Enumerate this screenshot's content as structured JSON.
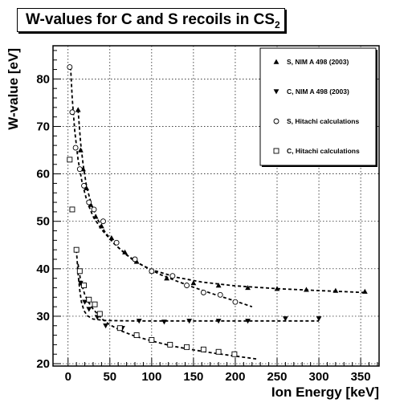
{
  "title": {
    "main": "W-values for C and S recoils in CS",
    "sub": "2"
  },
  "chart_data": {
    "type": "scatter",
    "xlabel": "Ion Energy [keV]",
    "ylabel": "W-value [eV]",
    "xlim": [
      -18,
      372
    ],
    "ylim": [
      19.5,
      87
    ],
    "xticks": [
      0,
      50,
      100,
      150,
      200,
      250,
      300,
      350
    ],
    "yticks": [
      20,
      30,
      40,
      50,
      60,
      70,
      80
    ],
    "grid": true,
    "legend_position": "top-right",
    "series": [
      {
        "name": "S, NIM A 498 (2003)",
        "marker": "triangle-up",
        "points": [
          [
            12,
            73.5
          ],
          [
            15,
            65
          ],
          [
            18,
            61
          ],
          [
            22,
            57
          ],
          [
            27,
            53.5
          ],
          [
            33,
            51
          ],
          [
            40,
            49
          ],
          [
            52,
            46.5
          ],
          [
            68,
            43.5
          ],
          [
            82,
            41.5
          ],
          [
            100,
            39.5
          ],
          [
            118,
            38
          ],
          [
            150,
            37
          ],
          [
            180,
            36.5
          ],
          [
            215,
            36
          ],
          [
            250,
            35.8
          ],
          [
            285,
            35.6
          ],
          [
            320,
            35.4
          ],
          [
            355,
            35.2
          ]
        ]
      },
      {
        "name": "C, NIM A 498 (2003)",
        "marker": "triangle-down",
        "points": [
          [
            10,
            44
          ],
          [
            15,
            37
          ],
          [
            20,
            33
          ],
          [
            25,
            31.5
          ],
          [
            35,
            29.8
          ],
          [
            45,
            28
          ],
          [
            65,
            27.5
          ],
          [
            85,
            29
          ],
          [
            115,
            28.8
          ],
          [
            145,
            29
          ],
          [
            180,
            29
          ],
          [
            215,
            29
          ],
          [
            260,
            29.5
          ],
          [
            300,
            29.5
          ]
        ]
      },
      {
        "name": "S, Hitachi calculations",
        "marker": "circle",
        "points": [
          [
            2,
            82.5
          ],
          [
            5,
            73
          ],
          [
            9,
            65.5
          ],
          [
            14,
            61
          ],
          [
            19,
            57.5
          ],
          [
            25,
            54
          ],
          [
            31,
            52.5
          ],
          [
            42,
            50
          ],
          [
            58,
            45.5
          ],
          [
            80,
            42
          ],
          [
            100,
            39.5
          ],
          [
            125,
            38.5
          ],
          [
            142,
            36.5
          ],
          [
            162,
            35
          ],
          [
            182,
            34.5
          ],
          [
            200,
            33
          ]
        ]
      },
      {
        "name": "C, Hitachi calculations",
        "marker": "square",
        "points": [
          [
            2,
            63
          ],
          [
            5,
            52.5
          ],
          [
            10,
            44
          ],
          [
            14,
            39.5
          ],
          [
            19,
            36.5
          ],
          [
            25,
            33.5
          ],
          [
            32,
            32.5
          ],
          [
            38,
            30.5
          ],
          [
            62,
            27.5
          ],
          [
            82,
            26
          ],
          [
            100,
            25
          ],
          [
            122,
            24
          ],
          [
            142,
            23.5
          ],
          [
            162,
            23
          ],
          [
            180,
            22.5
          ],
          [
            199,
            22
          ]
        ]
      }
    ],
    "fit_curves": [
      {
        "points": [
          [
            12,
            73.5
          ],
          [
            15,
            66.5
          ],
          [
            18,
            62
          ],
          [
            22,
            57.5
          ],
          [
            28,
            53.5
          ],
          [
            35,
            50.5
          ],
          [
            45,
            47.5
          ],
          [
            60,
            44.5
          ],
          [
            80,
            41.5
          ],
          [
            100,
            39.8
          ],
          [
            130,
            38.2
          ],
          [
            160,
            37.2
          ],
          [
            200,
            36.4
          ],
          [
            250,
            35.8
          ],
          [
            300,
            35.4
          ],
          [
            355,
            35
          ]
        ]
      },
      {
        "points": [
          [
            10,
            44
          ],
          [
            12,
            39
          ],
          [
            14,
            35.5
          ],
          [
            16,
            33
          ],
          [
            19,
            31.2
          ],
          [
            23,
            30.1
          ],
          [
            30,
            29.4
          ],
          [
            45,
            29.1
          ],
          [
            80,
            29
          ],
          [
            150,
            29
          ],
          [
            300,
            29
          ]
        ]
      },
      {
        "points": [
          [
            3,
            82.5
          ],
          [
            5,
            76
          ],
          [
            8,
            69
          ],
          [
            12,
            63
          ],
          [
            17,
            58
          ],
          [
            23,
            54
          ],
          [
            30,
            51
          ],
          [
            40,
            48.3
          ],
          [
            55,
            45.3
          ],
          [
            70,
            42.9
          ],
          [
            90,
            40.6
          ],
          [
            110,
            38.8
          ],
          [
            130,
            37.4
          ],
          [
            150,
            36.1
          ],
          [
            175,
            34.6
          ],
          [
            200,
            33.2
          ],
          [
            220,
            32
          ]
        ]
      },
      {
        "points": [
          [
            12,
            41
          ],
          [
            15,
            37.5
          ],
          [
            20,
            34.5
          ],
          [
            25,
            32.8
          ],
          [
            30,
            31.5
          ],
          [
            40,
            29.5
          ],
          [
            50,
            28.2
          ],
          [
            65,
            26.8
          ],
          [
            80,
            25.8
          ],
          [
            100,
            24.8
          ],
          [
            125,
            23.7
          ],
          [
            150,
            22.9
          ],
          [
            175,
            22.2
          ],
          [
            200,
            21.6
          ],
          [
            225,
            21
          ]
        ]
      }
    ]
  }
}
